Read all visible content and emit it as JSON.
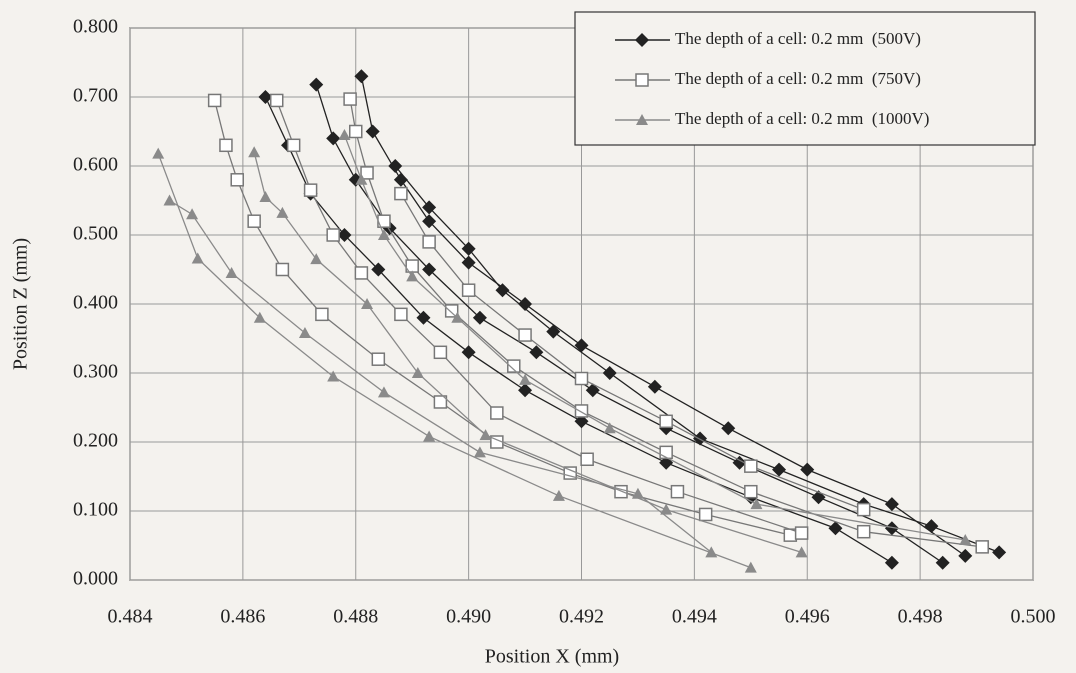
{
  "chart_data": {
    "type": "line",
    "xlabel": "Position X (mm)",
    "ylabel": "Position Z (mm)",
    "xlim": [
      0.484,
      0.5
    ],
    "ylim": [
      0,
      0.8
    ],
    "xticks": [
      0.484,
      0.486,
      0.488,
      {
        "value": 0.49,
        "label": "0.490"
      },
      0.492,
      0.494,
      0.496,
      0.498,
      {
        "value": 0.5,
        "label": "0.500"
      }
    ],
    "yticks": [
      {
        "value": 0,
        "label": "0.000"
      },
      {
        "value": 0.1,
        "label": "0.100"
      },
      {
        "value": 0.2,
        "label": "0.200"
      },
      {
        "value": 0.3,
        "label": "0.300"
      },
      {
        "value": 0.4,
        "label": "0.400"
      },
      {
        "value": 0.5,
        "label": "0.500"
      },
      {
        "value": 0.6,
        "label": "0.600"
      },
      {
        "value": 0.7,
        "label": "0.700"
      },
      {
        "value": 0.8,
        "label": "0.800"
      }
    ],
    "grid": true,
    "legend": "upper right",
    "series": [
      {
        "name": "The depth of a cell: 0.2 mm  (500V)",
        "color": "#222222",
        "marker": "diamond",
        "curves": [
          {
            "x": [
              0.4864,
              0.4868,
              0.4872,
              0.4878,
              0.4884,
              0.4892,
              0.49,
              0.491,
              0.492,
              0.4935,
              0.495,
              0.4965,
              0.4975
            ],
            "y": [
              0.7,
              0.63,
              0.56,
              0.5,
              0.45,
              0.38,
              0.33,
              0.275,
              0.23,
              0.17,
              0.12,
              0.075,
              0.025
            ]
          },
          {
            "x": [
              0.4873,
              0.4876,
              0.488,
              0.4886,
              0.4893,
              0.4902,
              0.4912,
              0.4922,
              0.4935,
              0.4948,
              0.4962,
              0.4975,
              0.4984
            ],
            "y": [
              0.718,
              0.64,
              0.58,
              0.51,
              0.45,
              0.38,
              0.33,
              0.275,
              0.22,
              0.17,
              0.12,
              0.075,
              0.025
            ]
          },
          {
            "x": [
              0.4881,
              0.4883,
              0.4888,
              0.4893,
              0.49,
              0.491,
              0.492,
              0.4933,
              0.4946,
              0.496,
              0.4975,
              0.4988
            ],
            "y": [
              0.73,
              0.65,
              0.58,
              0.52,
              0.46,
              0.4,
              0.34,
              0.28,
              0.22,
              0.16,
              0.11,
              0.035
            ]
          },
          {
            "x": [
              0.4887,
              0.4893,
              0.49,
              0.4906,
              0.4915,
              0.4925,
              0.4941,
              0.4955,
              0.497,
              0.4982,
              0.4994
            ],
            "y": [
              0.6,
              0.54,
              0.48,
              0.42,
              0.36,
              0.3,
              0.205,
              0.16,
              0.11,
              0.078,
              0.04
            ]
          }
        ]
      },
      {
        "name": "The depth of a cell: 0.2 mm  (750V)",
        "color": "#777777",
        "marker": "square",
        "curves": [
          {
            "x": [
              0.4855,
              0.4857,
              0.4859,
              0.4862,
              0.4867,
              0.4874,
              0.4884,
              0.4895,
              0.4905,
              0.4918,
              0.4927,
              0.4942,
              0.4957
            ],
            "y": [
              0.695,
              0.63,
              0.58,
              0.52,
              0.45,
              0.385,
              0.32,
              0.258,
              0.2,
              0.155,
              0.128,
              0.095,
              0.065
            ]
          },
          {
            "x": [
              0.4866,
              0.4869,
              0.4872,
              0.4876,
              0.4881,
              0.4888,
              0.4895,
              0.4905,
              0.4921,
              0.4937,
              0.4959
            ],
            "y": [
              0.695,
              0.63,
              0.565,
              0.5,
              0.445,
              0.385,
              0.33,
              0.242,
              0.175,
              0.128,
              0.068
            ]
          },
          {
            "x": [
              0.4879,
              0.488,
              0.4882,
              0.4885,
              0.489,
              0.4897,
              0.4908,
              0.492,
              0.4935,
              0.495,
              0.497,
              0.4991
            ],
            "y": [
              0.697,
              0.65,
              0.59,
              0.52,
              0.455,
              0.39,
              0.31,
              0.245,
              0.185,
              0.128,
              0.07,
              0.048
            ]
          },
          {
            "x": [
              0.4888,
              0.4893,
              0.49,
              0.491,
              0.492,
              0.4935,
              0.495,
              0.497
            ],
            "y": [
              0.56,
              0.49,
              0.42,
              0.355,
              0.292,
              0.23,
              0.165,
              0.102
            ]
          }
        ]
      },
      {
        "name": "The depth of a cell: 0.2 mm  (1000V)",
        "color": "#8a8a8a",
        "marker": "triangle",
        "curves": [
          {
            "x": [
              0.4845,
              0.4852,
              0.4863,
              0.4876,
              0.4893,
              0.4916,
              0.495
            ],
            "y": [
              0.618,
              0.466,
              0.38,
              0.295,
              0.208,
              0.122,
              0.018
            ]
          },
          {
            "x": [
              0.4847,
              0.4851,
              0.4858,
              0.4871,
              0.4885,
              0.4902,
              0.493,
              0.4943
            ],
            "y": [
              0.55,
              0.53,
              0.445,
              0.358,
              0.272,
              0.185,
              0.125,
              0.04
            ]
          },
          {
            "x": [
              0.4862,
              0.4864,
              0.4867,
              0.4873,
              0.4882,
              0.4891,
              0.4903,
              0.4935,
              0.4959
            ],
            "y": [
              0.62,
              0.555,
              0.532,
              0.465,
              0.4,
              0.3,
              0.21,
              0.102,
              0.04
            ]
          },
          {
            "x": [
              0.4878,
              0.4881,
              0.4885,
              0.489,
              0.4898,
              0.491,
              0.4925,
              0.4951,
              0.4988
            ],
            "y": [
              0.645,
              0.58,
              0.5,
              0.44,
              0.38,
              0.29,
              0.22,
              0.11,
              0.058
            ]
          }
        ]
      }
    ]
  }
}
